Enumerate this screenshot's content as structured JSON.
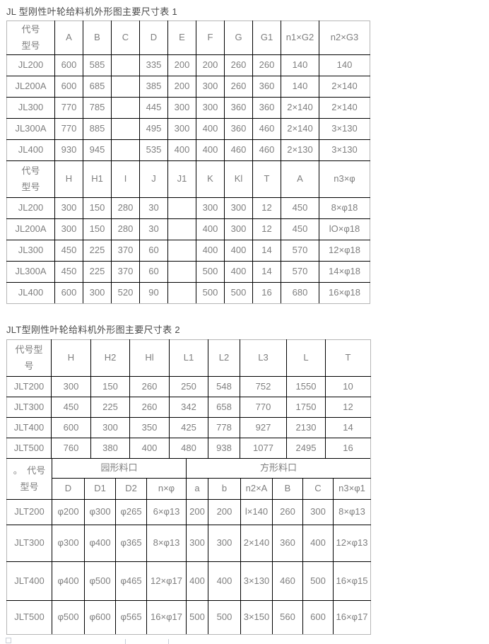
{
  "document": {
    "section1_title": "JL 型刚性叶轮给料机外形图主要尺寸表 1",
    "section2_title": "JLT型刚性叶轮给料机外形图主要尺寸表 2"
  },
  "colors": {
    "body_text": "#7f7f7f",
    "title_text": "#4a4a4a",
    "grid_line": "#000000",
    "outer_frame": "#b6b6b6"
  },
  "table1": {
    "headerA": [
      "代号\n型号",
      "A",
      "B",
      "C",
      "D",
      "E",
      "F",
      "G",
      "G1",
      "n1×G2",
      "n2×G3"
    ],
    "rowsA": [
      [
        "JL200",
        "600",
        "585",
        "",
        "335",
        "200",
        "200",
        "260",
        "260",
        "140",
        "140"
      ],
      [
        "JL200A",
        "600",
        "685",
        "",
        "385",
        "200",
        "300",
        "260",
        "360",
        "140",
        "2×140"
      ],
      [
        "JL300",
        "770",
        "785",
        "",
        "445",
        "300",
        "300",
        "360",
        "360",
        "2×140",
        "2×140"
      ],
      [
        "JL300A",
        "770",
        "885",
        "",
        "495",
        "300",
        "400",
        "360",
        "460",
        "2×140",
        "3×130"
      ],
      [
        "JL400",
        "930",
        "945",
        "",
        "535",
        "400",
        "400",
        "460",
        "460",
        "2×130",
        "3×130"
      ]
    ],
    "headerB": [
      "代号\n型号",
      "H",
      "H1",
      "I",
      "J",
      "J1",
      "K",
      "Kl",
      "T",
      "A",
      "n3×φ"
    ],
    "rowsB": [
      [
        "JL200",
        "300",
        "150",
        "280",
        "30",
        "",
        "300",
        "300",
        "12",
        "450",
        "8×φ18"
      ],
      [
        "JL200A",
        "300",
        "150",
        "280",
        "30",
        "",
        "400",
        "300",
        "12",
        "450",
        "lO×φ18"
      ],
      [
        "JL300",
        "450",
        "225",
        "370",
        "60",
        "",
        "400",
        "400",
        "14",
        "570",
        "12×φ18"
      ],
      [
        "JL300A",
        "450",
        "225",
        "370",
        "60",
        "",
        "500",
        "400",
        "14",
        "570",
        "14×φ18"
      ],
      [
        "JL400",
        "600",
        "300",
        "520",
        "90",
        "",
        "500",
        "500",
        "16",
        "680",
        "16×φ18"
      ]
    ]
  },
  "table2": {
    "header": [
      "代号型\n号",
      "H",
      "H2",
      "Hl",
      "L1",
      "L2",
      "L3",
      "L",
      "T"
    ],
    "rows": [
      [
        "JLT200",
        "300",
        "150",
        "260",
        "250",
        "548",
        "752",
        "1550",
        "10"
      ],
      [
        "JLT300",
        "450",
        "225",
        "260",
        "342",
        "658",
        "770",
        "1750",
        "12"
      ],
      [
        "JLT400",
        "600",
        "300",
        "350",
        "425",
        "778",
        "927",
        "2130",
        "14"
      ],
      [
        "JLT500",
        "760",
        "380",
        "400",
        "480",
        "938",
        "1077",
        "2495",
        "16"
      ]
    ]
  },
  "table3": {
    "corner_label": "。　代号\n型号",
    "group_round": "园形料口",
    "group_square": "方形料口",
    "subheader": [
      "D",
      "D1",
      "D2",
      "n×φ",
      "a",
      "b",
      "n2×A",
      "B",
      "C",
      "n3×φ1"
    ],
    "rows": [
      [
        "JLT200",
        "φ200",
        "φ300",
        "φ265",
        "6×φ13",
        "200",
        "200",
        "l×140",
        "260",
        "300",
        "8×φ13"
      ],
      [
        "JLT300",
        "φ300",
        "φ400",
        "φ365",
        "8×φ13",
        "300",
        "300",
        "2×140",
        "360",
        "400",
        "12×φ13"
      ],
      [
        "JLT400",
        "φ400",
        "φ500",
        "φ465",
        "12×φ17",
        "400",
        "400",
        "3×130",
        "460",
        "500",
        "16×φ15"
      ],
      [
        "JLT500",
        "φ500",
        "φ600",
        "φ565",
        "16×φ17",
        "500",
        "500",
        "3×150",
        "560",
        "600",
        "16×φ17"
      ]
    ]
  }
}
